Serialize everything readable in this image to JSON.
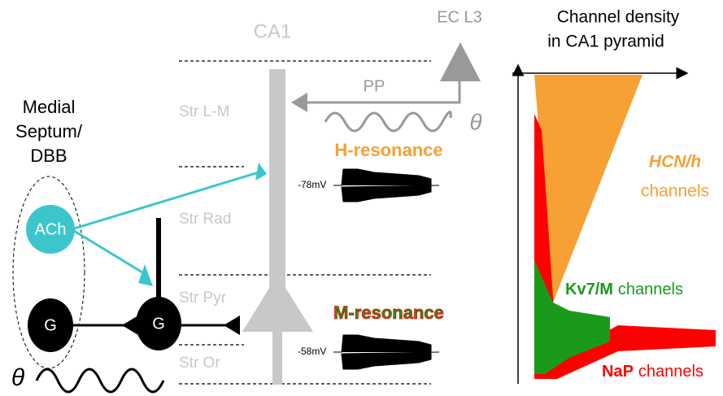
{
  "septum": {
    "label_lines": [
      "Medial",
      "Septum/",
      "DBB"
    ],
    "ach": "ACh",
    "g1": "G",
    "g2": "G",
    "theta": "θ"
  },
  "ca1": {
    "title": "CA1",
    "layers": [
      "Str L-M",
      "Str Rad",
      "Str Pyr",
      "Str Or"
    ],
    "ec": "EC L3",
    "pp": "PP",
    "theta": "θ",
    "h_resonance": "H-resonance",
    "h_voltage": "-78mV",
    "m_resonance": "M-resonance",
    "m_voltage": "-58mV"
  },
  "density": {
    "title_lines": [
      "Channel density",
      "in CA1 pyramid"
    ],
    "hcn": {
      "name": "HCN/h",
      "suffix": "channels"
    },
    "kv7": {
      "name": "Kv7/M",
      "suffix": "channels"
    },
    "nap": {
      "name": "NaP",
      "suffix": "channels"
    }
  }
}
